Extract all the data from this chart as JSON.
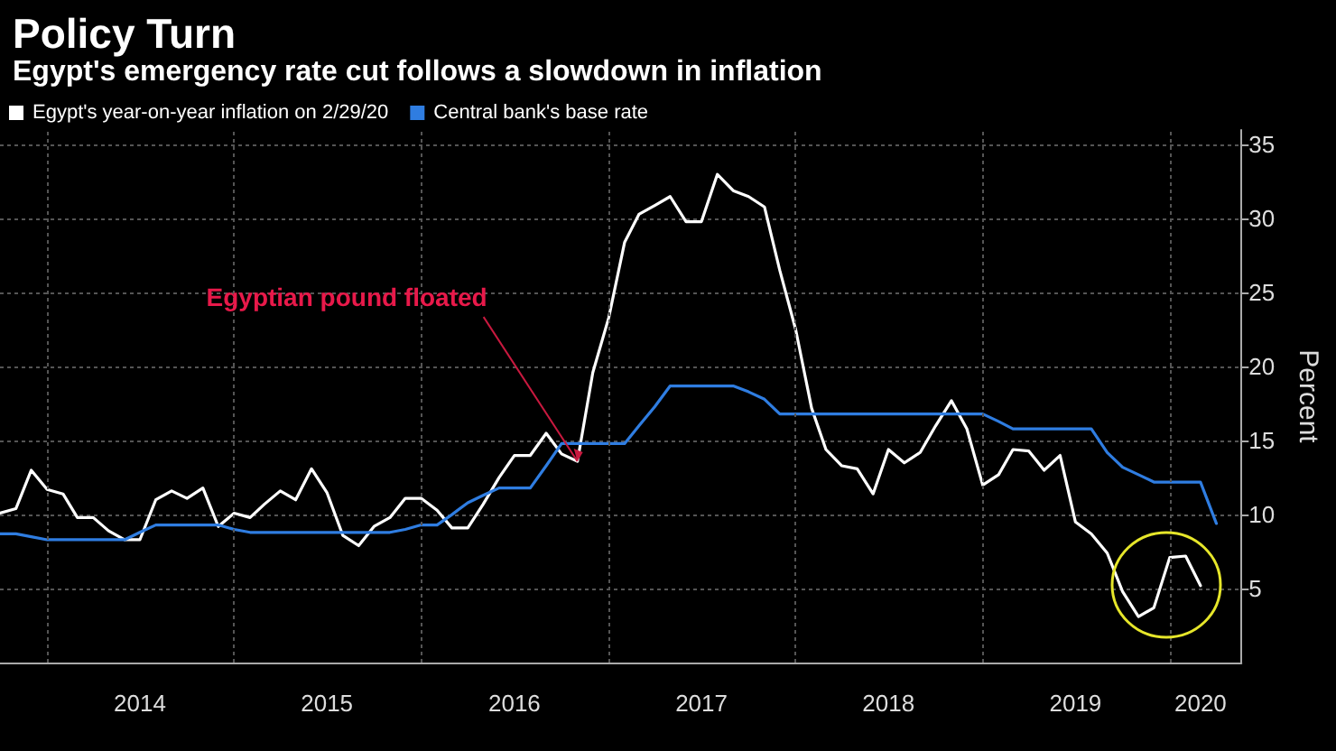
{
  "chart_data": {
    "type": "line",
    "title": "Policy Turn",
    "subtitle": "Egypt's emergency rate cut follows a slowdown in inflation",
    "ylabel": "Percent",
    "annotations": [
      {
        "text": "Egyptian pound floated",
        "x": "2016-11",
        "y": 13.6
      }
    ],
    "x": [
      "2013-10",
      "2013-11",
      "2013-12",
      "2014-01",
      "2014-02",
      "2014-03",
      "2014-04",
      "2014-05",
      "2014-06",
      "2014-07",
      "2014-08",
      "2014-09",
      "2014-10",
      "2014-11",
      "2014-12",
      "2015-01",
      "2015-02",
      "2015-03",
      "2015-04",
      "2015-05",
      "2015-06",
      "2015-07",
      "2015-08",
      "2015-09",
      "2015-10",
      "2015-11",
      "2015-12",
      "2016-01",
      "2016-02",
      "2016-03",
      "2016-04",
      "2016-05",
      "2016-06",
      "2016-07",
      "2016-08",
      "2016-09",
      "2016-10",
      "2016-11",
      "2016-12",
      "2017-01",
      "2017-02",
      "2017-03",
      "2017-04",
      "2017-05",
      "2017-06",
      "2017-07",
      "2017-08",
      "2017-09",
      "2017-10",
      "2017-11",
      "2017-12",
      "2018-01",
      "2018-02",
      "2018-03",
      "2018-04",
      "2018-05",
      "2018-06",
      "2018-07",
      "2018-08",
      "2018-09",
      "2018-10",
      "2018-11",
      "2018-12",
      "2019-01",
      "2019-02",
      "2019-03",
      "2019-04",
      "2019-05",
      "2019-06",
      "2019-07",
      "2019-08",
      "2019-09",
      "2019-10",
      "2019-11",
      "2019-12",
      "2020-01",
      "2020-02",
      "2020-03",
      "2020-04"
    ],
    "series": [
      {
        "name": "Egypt's year-on-year inflation on 2/29/20",
        "color": "#ffffff",
        "values": [
          10.1,
          10.4,
          13.0,
          11.7,
          11.4,
          9.8,
          9.8,
          8.9,
          8.3,
          8.3,
          11.0,
          11.6,
          11.1,
          11.8,
          9.2,
          10.1,
          9.8,
          10.7,
          11.6,
          11.0,
          13.1,
          11.5,
          8.6,
          7.9,
          9.2,
          9.8,
          11.1,
          11.1,
          10.3,
          9.1,
          9.1,
          10.7,
          12.5,
          14.0,
          14.0,
          15.5,
          14.1,
          13.6,
          19.6,
          23.3,
          28.4,
          30.3,
          30.9,
          31.5,
          29.8,
          29.8,
          33.0,
          31.9,
          31.5,
          30.8,
          26.5,
          22.5,
          17.2,
          14.4,
          13.3,
          13.1,
          11.4,
          14.4,
          13.5,
          14.2,
          16.0,
          17.7,
          15.8,
          12.0,
          12.7,
          14.4,
          14.3,
          13.0,
          14.0,
          9.5,
          8.7,
          7.4,
          4.8,
          3.1,
          3.7,
          7.1,
          7.2,
          5.2,
          null
        ]
      },
      {
        "name": "Central bank's base rate",
        "color": "#2f7de1",
        "values": [
          8.7,
          8.7,
          8.5,
          8.3,
          8.3,
          8.3,
          8.3,
          8.3,
          8.3,
          8.8,
          9.3,
          9.3,
          9.3,
          9.3,
          9.3,
          9.0,
          8.8,
          8.8,
          8.8,
          8.8,
          8.8,
          8.8,
          8.8,
          8.8,
          8.8,
          8.8,
          9.0,
          9.3,
          9.3,
          10.0,
          10.8,
          11.3,
          11.8,
          11.8,
          11.8,
          13.3,
          14.8,
          14.8,
          14.8,
          14.8,
          14.8,
          16.0,
          17.3,
          18.7,
          18.7,
          18.7,
          18.7,
          18.7,
          18.3,
          17.8,
          16.8,
          16.8,
          16.8,
          16.8,
          16.8,
          16.8,
          16.8,
          16.8,
          16.8,
          16.8,
          16.8,
          16.8,
          16.8,
          16.8,
          16.3,
          15.8,
          15.8,
          15.8,
          15.8,
          15.8,
          15.8,
          14.2,
          13.2,
          12.7,
          12.2,
          12.2,
          12.2,
          12.2,
          9.4
        ]
      }
    ],
    "xlim": [
      "2013-10",
      "2020-05-20"
    ],
    "xticks": [
      {
        "value": "2014-01",
        "label": null
      },
      {
        "value": "2014-07",
        "label": "2014"
      },
      {
        "value": "2015-01",
        "label": null
      },
      {
        "value": "2015-07",
        "label": "2015"
      },
      {
        "value": "2016-01",
        "label": null
      },
      {
        "value": "2016-07",
        "label": "2016"
      },
      {
        "value": "2017-01",
        "label": null
      },
      {
        "value": "2017-07",
        "label": "2017"
      },
      {
        "value": "2018-01",
        "label": null
      },
      {
        "value": "2018-07",
        "label": "2018"
      },
      {
        "value": "2019-01",
        "label": null
      },
      {
        "value": "2019-07",
        "label": "2019"
      },
      {
        "value": "2020-01",
        "label": null
      },
      {
        "value": "2020-03",
        "label": "2020"
      }
    ],
    "ylim": [
      0,
      36
    ],
    "yticks": [
      5,
      10,
      15,
      20,
      25,
      30,
      35
    ],
    "grid": true,
    "legend": "top left",
    "marker": "none",
    "line_style": "solid"
  }
}
